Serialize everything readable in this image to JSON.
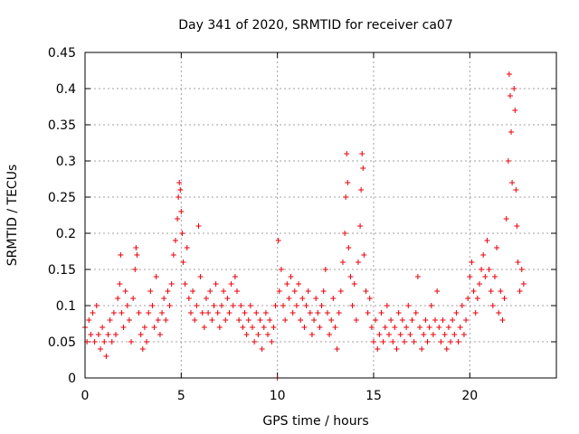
{
  "chart_data": {
    "type": "scatter",
    "title": "Day 341 of 2020, SRMTID for receiver ca07",
    "xlabel": "GPS time / hours",
    "ylabel": "SRMTID / TECUs",
    "xlim": [
      0,
      24.5
    ],
    "ylim": [
      0,
      0.45
    ],
    "xticks": [
      0,
      5,
      10,
      15,
      20
    ],
    "yticks": [
      0,
      0.05,
      0.1,
      0.15,
      0.2,
      0.25,
      0.3,
      0.35,
      0.4,
      0.45
    ],
    "xtick_labels": [
      "0",
      "5",
      "10",
      "15",
      "20"
    ],
    "ytick_labels": [
      "0",
      "0.05",
      "0.1",
      "0.15",
      "0.2",
      "0.25",
      "0.3",
      "0.35",
      "0.4",
      "0.45"
    ],
    "grid": true,
    "marker": "+",
    "color": "#e8000b",
    "series": [
      {
        "name": "SRMTID",
        "points": [
          [
            0.0,
            0.07
          ],
          [
            0.1,
            0.05
          ],
          [
            0.2,
            0.08
          ],
          [
            0.3,
            0.06
          ],
          [
            0.4,
            0.09
          ],
          [
            0.5,
            0.05
          ],
          [
            0.6,
            0.1
          ],
          [
            0.7,
            0.06
          ],
          [
            0.8,
            0.04
          ],
          [
            0.9,
            0.07
          ],
          [
            1.0,
            0.05
          ],
          [
            1.1,
            0.03
          ],
          [
            1.2,
            0.06
          ],
          [
            1.3,
            0.08
          ],
          [
            1.4,
            0.05
          ],
          [
            1.5,
            0.09
          ],
          [
            1.6,
            0.06
          ],
          [
            1.7,
            0.11
          ],
          [
            1.8,
            0.13
          ],
          [
            1.85,
            0.17
          ],
          [
            1.9,
            0.09
          ],
          [
            2.0,
            0.07
          ],
          [
            2.1,
            0.12
          ],
          [
            2.2,
            0.1
          ],
          [
            2.3,
            0.08
          ],
          [
            2.4,
            0.05
          ],
          [
            2.5,
            0.11
          ],
          [
            2.6,
            0.15
          ],
          [
            2.65,
            0.18
          ],
          [
            2.7,
            0.17
          ],
          [
            2.8,
            0.09
          ],
          [
            2.9,
            0.06
          ],
          [
            3.0,
            0.04
          ],
          [
            3.1,
            0.07
          ],
          [
            3.2,
            0.05
          ],
          [
            3.3,
            0.09
          ],
          [
            3.4,
            0.12
          ],
          [
            3.5,
            0.1
          ],
          [
            3.6,
            0.07
          ],
          [
            3.7,
            0.14
          ],
          [
            3.8,
            0.08
          ],
          [
            3.9,
            0.06
          ],
          [
            4.0,
            0.09
          ],
          [
            4.1,
            0.11
          ],
          [
            4.2,
            0.08
          ],
          [
            4.3,
            0.12
          ],
          [
            4.4,
            0.1
          ],
          [
            4.5,
            0.13
          ],
          [
            4.6,
            0.17
          ],
          [
            4.7,
            0.19
          ],
          [
            4.8,
            0.22
          ],
          [
            4.85,
            0.25
          ],
          [
            4.9,
            0.27
          ],
          [
            4.95,
            0.26
          ],
          [
            5.0,
            0.23
          ],
          [
            5.05,
            0.2
          ],
          [
            5.1,
            0.16
          ],
          [
            5.2,
            0.13
          ],
          [
            5.3,
            0.18
          ],
          [
            5.4,
            0.11
          ],
          [
            5.5,
            0.09
          ],
          [
            5.6,
            0.12
          ],
          [
            5.7,
            0.08
          ],
          [
            5.8,
            0.1
          ],
          [
            5.9,
            0.21
          ],
          [
            6.0,
            0.14
          ],
          [
            6.1,
            0.09
          ],
          [
            6.2,
            0.07
          ],
          [
            6.3,
            0.11
          ],
          [
            6.4,
            0.09
          ],
          [
            6.5,
            0.12
          ],
          [
            6.6,
            0.08
          ],
          [
            6.7,
            0.1
          ],
          [
            6.8,
            0.13
          ],
          [
            6.9,
            0.09
          ],
          [
            7.0,
            0.07
          ],
          [
            7.1,
            0.1
          ],
          [
            7.2,
            0.12
          ],
          [
            7.3,
            0.08
          ],
          [
            7.4,
            0.11
          ],
          [
            7.5,
            0.09
          ],
          [
            7.6,
            0.13
          ],
          [
            7.7,
            0.1
          ],
          [
            7.8,
            0.14
          ],
          [
            7.9,
            0.12
          ],
          [
            8.0,
            0.08
          ],
          [
            8.1,
            0.1
          ],
          [
            8.2,
            0.07
          ],
          [
            8.3,
            0.09
          ],
          [
            8.4,
            0.06
          ],
          [
            8.5,
            0.08
          ],
          [
            8.6,
            0.1
          ],
          [
            8.7,
            0.07
          ],
          [
            8.8,
            0.05
          ],
          [
            8.9,
            0.09
          ],
          [
            9.0,
            0.06
          ],
          [
            9.1,
            0.08
          ],
          [
            9.2,
            0.04
          ],
          [
            9.3,
            0.07
          ],
          [
            9.4,
            0.09
          ],
          [
            9.5,
            0.06
          ],
          [
            9.6,
            0.08
          ],
          [
            9.7,
            0.05
          ],
          [
            9.8,
            0.07
          ],
          [
            9.9,
            0.1
          ],
          [
            10.0,
            0.0
          ],
          [
            10.05,
            0.19
          ],
          [
            10.1,
            0.12
          ],
          [
            10.2,
            0.15
          ],
          [
            10.3,
            0.1
          ],
          [
            10.4,
            0.08
          ],
          [
            10.5,
            0.13
          ],
          [
            10.6,
            0.11
          ],
          [
            10.7,
            0.14
          ],
          [
            10.8,
            0.09
          ],
          [
            10.9,
            0.12
          ],
          [
            11.0,
            0.1
          ],
          [
            11.1,
            0.13
          ],
          [
            11.2,
            0.08
          ],
          [
            11.3,
            0.11
          ],
          [
            11.4,
            0.07
          ],
          [
            11.5,
            0.1
          ],
          [
            11.6,
            0.12
          ],
          [
            11.7,
            0.09
          ],
          [
            11.8,
            0.06
          ],
          [
            11.9,
            0.08
          ],
          [
            12.0,
            0.11
          ],
          [
            12.1,
            0.09
          ],
          [
            12.2,
            0.07
          ],
          [
            12.3,
            0.1
          ],
          [
            12.4,
            0.12
          ],
          [
            12.5,
            0.15
          ],
          [
            12.6,
            0.09
          ],
          [
            12.7,
            0.06
          ],
          [
            12.8,
            0.08
          ],
          [
            12.9,
            0.11
          ],
          [
            13.0,
            0.07
          ],
          [
            13.1,
            0.04
          ],
          [
            13.2,
            0.09
          ],
          [
            13.3,
            0.12
          ],
          [
            13.4,
            0.16
          ],
          [
            13.5,
            0.2
          ],
          [
            13.55,
            0.25
          ],
          [
            13.6,
            0.31
          ],
          [
            13.65,
            0.27
          ],
          [
            13.7,
            0.18
          ],
          [
            13.8,
            0.14
          ],
          [
            13.9,
            0.1
          ],
          [
            14.0,
            0.13
          ],
          [
            14.1,
            0.08
          ],
          [
            14.2,
            0.16
          ],
          [
            14.3,
            0.21
          ],
          [
            14.35,
            0.26
          ],
          [
            14.4,
            0.31
          ],
          [
            14.45,
            0.29
          ],
          [
            14.5,
            0.17
          ],
          [
            14.6,
            0.12
          ],
          [
            14.7,
            0.09
          ],
          [
            14.8,
            0.11
          ],
          [
            14.9,
            0.07
          ],
          [
            15.0,
            0.05
          ],
          [
            15.1,
            0.08
          ],
          [
            15.2,
            0.04
          ],
          [
            15.3,
            0.06
          ],
          [
            15.4,
            0.09
          ],
          [
            15.5,
            0.05
          ],
          [
            15.6,
            0.07
          ],
          [
            15.7,
            0.1
          ],
          [
            15.8,
            0.06
          ],
          [
            15.9,
            0.08
          ],
          [
            16.0,
            0.05
          ],
          [
            16.1,
            0.07
          ],
          [
            16.2,
            0.04
          ],
          [
            16.3,
            0.09
          ],
          [
            16.4,
            0.06
          ],
          [
            16.5,
            0.08
          ],
          [
            16.6,
            0.05
          ],
          [
            16.7,
            0.07
          ],
          [
            16.8,
            0.1
          ],
          [
            16.9,
            0.06
          ],
          [
            17.0,
            0.08
          ],
          [
            17.1,
            0.05
          ],
          [
            17.2,
            0.09
          ],
          [
            17.3,
            0.14
          ],
          [
            17.4,
            0.07
          ],
          [
            17.5,
            0.04
          ],
          [
            17.6,
            0.06
          ],
          [
            17.7,
            0.08
          ],
          [
            17.8,
            0.05
          ],
          [
            17.9,
            0.07
          ],
          [
            18.0,
            0.1
          ],
          [
            18.1,
            0.06
          ],
          [
            18.2,
            0.08
          ],
          [
            18.3,
            0.12
          ],
          [
            18.4,
            0.07
          ],
          [
            18.5,
            0.05
          ],
          [
            18.6,
            0.08
          ],
          [
            18.7,
            0.06
          ],
          [
            18.8,
            0.04
          ],
          [
            18.9,
            0.07
          ],
          [
            19.0,
            0.05
          ],
          [
            19.1,
            0.08
          ],
          [
            19.2,
            0.06
          ],
          [
            19.3,
            0.09
          ],
          [
            19.4,
            0.05
          ],
          [
            19.5,
            0.07
          ],
          [
            19.6,
            0.1
          ],
          [
            19.7,
            0.06
          ],
          [
            19.8,
            0.08
          ],
          [
            19.9,
            0.11
          ],
          [
            20.0,
            0.14
          ],
          [
            20.1,
            0.16
          ],
          [
            20.2,
            0.12
          ],
          [
            20.3,
            0.09
          ],
          [
            20.4,
            0.11
          ],
          [
            20.5,
            0.13
          ],
          [
            20.6,
            0.15
          ],
          [
            20.7,
            0.17
          ],
          [
            20.8,
            0.14
          ],
          [
            20.9,
            0.19
          ],
          [
            21.0,
            0.15
          ],
          [
            21.1,
            0.12
          ],
          [
            21.2,
            0.1
          ],
          [
            21.3,
            0.14
          ],
          [
            21.4,
            0.18
          ],
          [
            21.5,
            0.09
          ],
          [
            21.6,
            0.12
          ],
          [
            21.7,
            0.08
          ],
          [
            21.8,
            0.11
          ],
          [
            21.9,
            0.22
          ],
          [
            22.0,
            0.3
          ],
          [
            22.05,
            0.42
          ],
          [
            22.1,
            0.39
          ],
          [
            22.15,
            0.34
          ],
          [
            22.2,
            0.27
          ],
          [
            22.3,
            0.4
          ],
          [
            22.35,
            0.37
          ],
          [
            22.4,
            0.26
          ],
          [
            22.45,
            0.21
          ],
          [
            22.5,
            0.16
          ],
          [
            22.6,
            0.12
          ],
          [
            22.7,
            0.15
          ],
          [
            22.8,
            0.13
          ]
        ]
      }
    ]
  }
}
